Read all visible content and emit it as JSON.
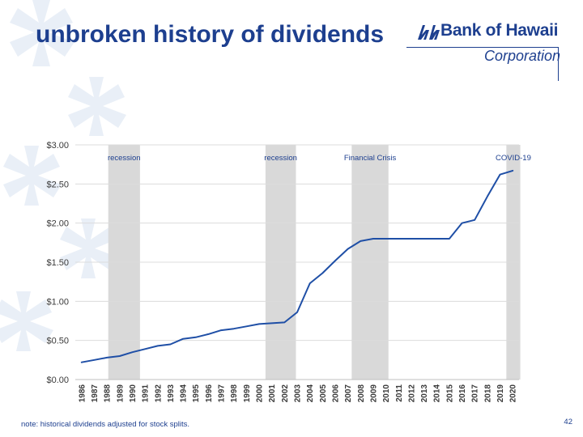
{
  "slide": {
    "title": "unbroken history of dividends",
    "note": "note: historical dividends adjusted for stock splits.",
    "page_number": "42"
  },
  "logo": {
    "name": "Bank of Hawaii",
    "subtitle": "Corporation"
  },
  "colors": {
    "brand_blue": "#1d3f8f",
    "line": "#1f4fa6",
    "shade": "#d9d9d9",
    "grid": "#dcdcdc",
    "deco": "#e9eff7"
  },
  "chart_data": {
    "type": "line",
    "title": "",
    "xlabel": "",
    "ylabel": "",
    "categories": [
      "1986",
      "1987",
      "1988",
      "1989",
      "1990",
      "1991",
      "1992",
      "1993",
      "1994",
      "1995",
      "1996",
      "1997",
      "1998",
      "1999",
      "2000",
      "2001",
      "2002",
      "2003",
      "2004",
      "2005",
      "2006",
      "2007",
      "2008",
      "2009",
      "2010",
      "2011",
      "2012",
      "2013",
      "2014",
      "2015",
      "2016",
      "2017",
      "2018",
      "2019",
      "2020"
    ],
    "values": [
      0.22,
      0.25,
      0.28,
      0.3,
      0.35,
      0.39,
      0.43,
      0.45,
      0.52,
      0.54,
      0.58,
      0.63,
      0.65,
      0.68,
      0.71,
      0.72,
      0.73,
      0.86,
      1.23,
      1.36,
      1.52,
      1.67,
      1.77,
      1.8,
      1.8,
      1.8,
      1.8,
      1.8,
      1.8,
      1.8,
      2.0,
      2.04,
      2.34,
      2.62,
      2.67
    ],
    "ylim": [
      0,
      3
    ],
    "yticks": [
      0,
      0.5,
      1,
      1.5,
      2,
      2.5,
      3
    ],
    "ytick_labels": [
      "$0.00",
      "$0.50",
      "$1.00",
      "$1.50",
      "$2.00",
      "$2.50",
      "$3.00"
    ],
    "grid": true,
    "bands": [
      {
        "label": "recession",
        "from": 1988.1,
        "to": 1990.6
      },
      {
        "label": "recession",
        "from": 2000.5,
        "to": 2002.9
      },
      {
        "label": "Financial Crisis",
        "from": 2007.3,
        "to": 2010.2
      },
      {
        "label": "COVID-19",
        "from": 2019.5,
        "to": 2020.6
      }
    ]
  }
}
